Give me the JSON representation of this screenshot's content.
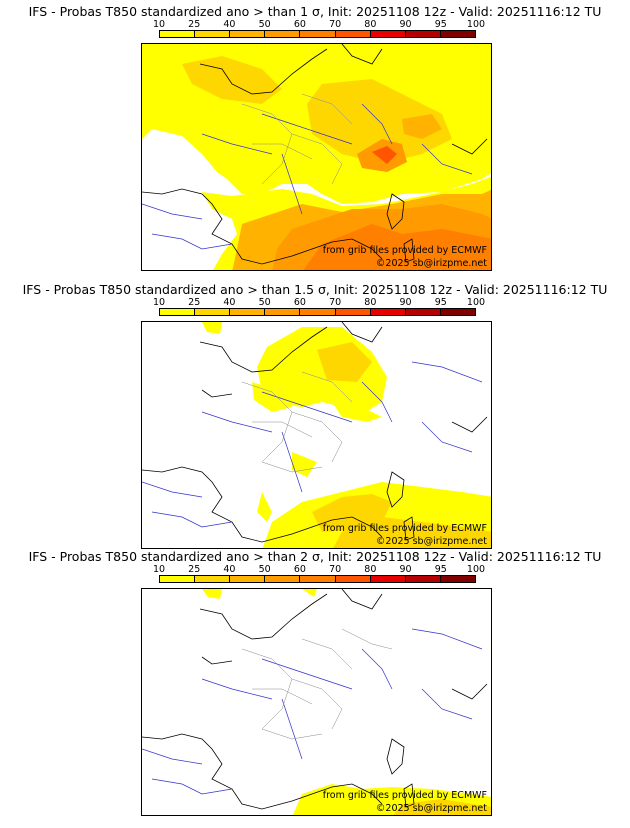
{
  "colorbar": {
    "ticks": [
      "10",
      "25",
      "40",
      "50",
      "60",
      "70",
      "80",
      "90",
      "95",
      "100"
    ],
    "colors": [
      "#ffff00",
      "#ffd700",
      "#ffb300",
      "#ff9a00",
      "#ff7f00",
      "#ff5400",
      "#e60000",
      "#b40000",
      "#800000"
    ]
  },
  "panels": [
    {
      "title": "IFS - Probas T850  standardized ano > than 1 σ, Init: 20251108 12z - Valid: 20251116:12 TU",
      "credit_1": "from grib files provided by ECMWF",
      "credit_2": "©2025 sb@irizpme.net",
      "coverage": "widespread"
    },
    {
      "title": "IFS - Probas T850  standardized ano > than 1.5 σ, Init: 20251108 12z - Valid: 20251116:12 TU",
      "credit_1": "from grib files provided by ECMWF",
      "credit_2": "©2025 sb@irizpme.net",
      "coverage": "partial"
    },
    {
      "title": "IFS - Probas T850  standardized ano > than 2 σ, Init: 20251108 12z - Valid: 20251116:12 TU",
      "credit_1": "from grib files provided by ECMWF",
      "credit_2": "©2025 sb@irizpme.net",
      "coverage": "minimal"
    }
  ],
  "palette": {
    "land_line": "#000000",
    "river": "#3333cc",
    "border_gray": "#888888"
  }
}
